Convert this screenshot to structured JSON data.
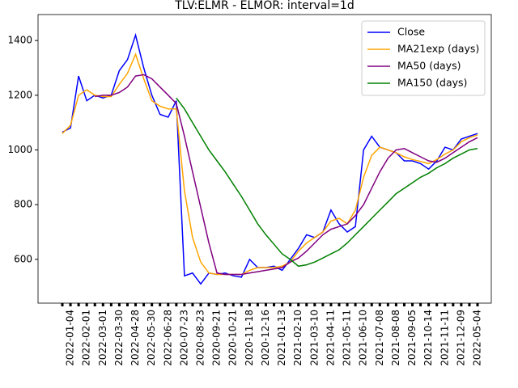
{
  "chart_data": {
    "type": "line",
    "title": "TLV:ELMR - ELMOR: interval=1d",
    "categories": [
      null,
      "2022-01-04",
      null,
      "2022-02-01",
      null,
      "2022-03-01",
      null,
      "2022-03-30",
      null,
      "2022-04-28",
      null,
      "2022-05-30",
      null,
      "2022-06-28",
      null,
      "2020-07-23",
      null,
      "2020-08-23",
      null,
      "2020-09-21",
      null,
      "2020-10-21",
      null,
      "2020-11-18",
      null,
      "2020-12-16",
      null,
      "2021-01-13",
      null,
      "2021-02-10",
      null,
      "2021-03-10",
      null,
      "2021-04-11",
      null,
      "2021-05-11",
      null,
      "2021-06-10",
      null,
      "2021-07-08",
      null,
      "2021-08-08",
      null,
      "2021-09-05",
      null,
      "2021-10-14",
      null,
      "2021-11-11",
      null,
      "2021-12-09",
      null,
      "2022-05-04"
    ],
    "series": [
      {
        "name": "Close",
        "color": "#0000ff",
        "values": [
          1065,
          1080,
          1270,
          1180,
          1200,
          1190,
          1200,
          1290,
          1330,
          1420,
          1300,
          1200,
          1130,
          1120,
          1180,
          540,
          550,
          510,
          550,
          545,
          550,
          540,
          535,
          600,
          570,
          570,
          575,
          560,
          600,
          640,
          690,
          680,
          700,
          780,
          730,
          700,
          720,
          1000,
          1050,
          1010,
          1000,
          990,
          960,
          960,
          950,
          930,
          960,
          1010,
          1000,
          1040,
          1050,
          1060
        ]
      },
      {
        "name": "MA21exp (days)",
        "color": "#ffa500",
        "values": [
          1060,
          1090,
          1200,
          1220,
          1200,
          1195,
          1195,
          1240,
          1280,
          1350,
          1260,
          1180,
          1160,
          1150,
          1150,
          850,
          680,
          590,
          550,
          545,
          545,
          545,
          545,
          560,
          570,
          570,
          570,
          575,
          590,
          630,
          660,
          680,
          700,
          740,
          750,
          730,
          780,
          900,
          980,
          1010,
          1000,
          990,
          975,
          965,
          958,
          950,
          965,
          985,
          1000,
          1030,
          1045,
          1055
        ]
      },
      {
        "name": "MA50 (days)",
        "color": "#800080",
        "values": [
          null,
          null,
          null,
          null,
          1195,
          1200,
          1200,
          1210,
          1230,
          1270,
          1275,
          1260,
          1230,
          1200,
          1170,
          1050,
          920,
          790,
          660,
          550,
          545,
          545,
          545,
          550,
          555,
          560,
          565,
          570,
          590,
          605,
          630,
          660,
          690,
          710,
          720,
          730,
          760,
          800,
          860,
          920,
          970,
          1000,
          1005,
          990,
          975,
          960,
          955,
          970,
          990,
          1010,
          1030,
          1045
        ]
      },
      {
        "name": "MA150 (days)",
        "color": "#008000",
        "values": [
          null,
          null,
          null,
          null,
          null,
          null,
          null,
          null,
          null,
          null,
          null,
          null,
          null,
          null,
          1190,
          1150,
          1100,
          1050,
          1000,
          960,
          920,
          875,
          830,
          780,
          730,
          690,
          655,
          620,
          600,
          575,
          580,
          590,
          605,
          620,
          635,
          660,
          690,
          720,
          750,
          780,
          810,
          840,
          860,
          880,
          900,
          915,
          935,
          950,
          970,
          985,
          1000,
          1005
        ]
      }
    ],
    "ylim": [
      440,
      1495
    ],
    "yticks": [
      600,
      800,
      1000,
      1200,
      1400
    ],
    "legend": "upper right"
  }
}
